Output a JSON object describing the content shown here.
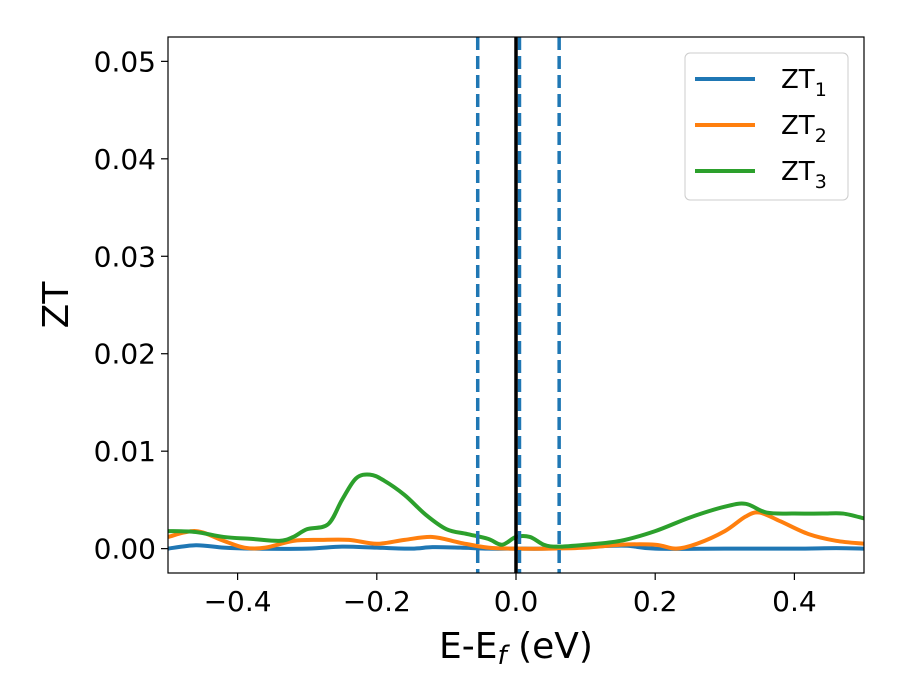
{
  "chart_data": {
    "type": "line",
    "title": "",
    "xlabel_main": "E-E",
    "xlabel_sub": "f",
    "xlabel_tail": " (eV)",
    "ylabel": "ZT",
    "xlim": [
      -0.5,
      0.5
    ],
    "ylim": [
      -0.0025,
      0.0525
    ],
    "grid": false,
    "legend_position": "top-right",
    "xticks": [
      {
        "value": -0.4,
        "label": "−0.4"
      },
      {
        "value": -0.2,
        "label": "−0.2"
      },
      {
        "value": 0.0,
        "label": "0.0"
      },
      {
        "value": 0.2,
        "label": "0.2"
      },
      {
        "value": 0.4,
        "label": "0.4"
      }
    ],
    "yticks": [
      {
        "value": 0.0,
        "label": "0.00"
      },
      {
        "value": 0.01,
        "label": "0.01"
      },
      {
        "value": 0.02,
        "label": "0.02"
      },
      {
        "value": 0.03,
        "label": "0.03"
      },
      {
        "value": 0.04,
        "label": "0.04"
      },
      {
        "value": 0.05,
        "label": "0.05"
      }
    ],
    "vlines": [
      {
        "x": -0.055,
        "style": "dashed",
        "color": "#1f77b4"
      },
      {
        "x": 0.005,
        "style": "dashed",
        "color": "#1f77b4"
      },
      {
        "x": 0.062,
        "style": "dashed",
        "color": "#1f77b4"
      },
      {
        "x": 0.0,
        "style": "solid",
        "color": "#000000"
      }
    ],
    "series": [
      {
        "name": "ZT",
        "sub": "1",
        "color": "#1f77b4",
        "x": [
          -0.5,
          -0.46,
          -0.42,
          -0.38,
          -0.3,
          -0.25,
          -0.2,
          -0.15,
          -0.12,
          -0.08,
          -0.04,
          0.0,
          0.04,
          0.08,
          0.12,
          0.16,
          0.2,
          0.3,
          0.4,
          0.46,
          0.5
        ],
        "y": [
          0.0,
          0.00035,
          0.0001,
          0.0,
          0.0,
          0.0002,
          0.0001,
          0.0,
          0.00015,
          0.0001,
          0.0,
          0.0,
          0.0,
          0.0001,
          0.00025,
          0.0003,
          0.0,
          0.0,
          0.0,
          5e-05,
          0.0
        ]
      },
      {
        "name": "ZT",
        "sub": "2",
        "color": "#ff7f0e",
        "x": [
          -0.5,
          -0.46,
          -0.42,
          -0.39,
          -0.36,
          -0.32,
          -0.28,
          -0.24,
          -0.2,
          -0.16,
          -0.12,
          -0.08,
          -0.04,
          0.0,
          0.05,
          0.1,
          0.15,
          0.2,
          0.23,
          0.26,
          0.3,
          0.33,
          0.35,
          0.38,
          0.42,
          0.46,
          0.5
        ],
        "y": [
          0.0012,
          0.0018,
          0.0008,
          0.0001,
          0.0001,
          0.0008,
          0.0009,
          0.0009,
          0.0005,
          0.0009,
          0.0012,
          0.0006,
          0.0001,
          0.0,
          0.0,
          0.0001,
          0.0004,
          0.0004,
          0.0,
          0.0005,
          0.0018,
          0.0033,
          0.0037,
          0.0028,
          0.0015,
          0.0008,
          0.0005
        ]
      },
      {
        "name": "ZT",
        "sub": "3",
        "color": "#2ca02c",
        "x": [
          -0.5,
          -0.46,
          -0.42,
          -0.38,
          -0.34,
          -0.32,
          -0.3,
          -0.27,
          -0.25,
          -0.23,
          -0.21,
          -0.19,
          -0.16,
          -0.13,
          -0.1,
          -0.07,
          -0.04,
          -0.02,
          0.0,
          0.02,
          0.04,
          0.06,
          0.1,
          0.15,
          0.2,
          0.25,
          0.3,
          0.33,
          0.36,
          0.4,
          0.44,
          0.47,
          0.5
        ],
        "y": [
          0.0018,
          0.0017,
          0.0012,
          0.001,
          0.0008,
          0.0012,
          0.002,
          0.0025,
          0.005,
          0.0072,
          0.0076,
          0.007,
          0.0055,
          0.0035,
          0.002,
          0.0015,
          0.001,
          0.0004,
          0.0012,
          0.0012,
          0.0004,
          0.0002,
          0.0004,
          0.0008,
          0.0018,
          0.0032,
          0.0043,
          0.0046,
          0.0037,
          0.0036,
          0.0036,
          0.0036,
          0.0031
        ]
      }
    ]
  }
}
